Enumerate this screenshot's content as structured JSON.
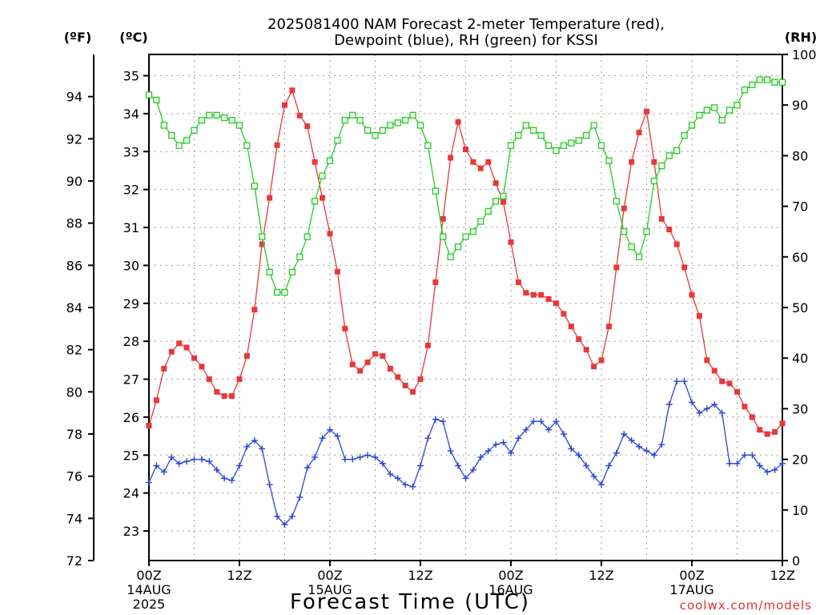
{
  "chart_data": {
    "type": "line",
    "title": "2025081400 NAM Forecast 2-meter Temperature (red),",
    "subtitle": "Dewpoint (blue), RH (green) for KSSI",
    "xlabel": "Forecast Time (UTC)",
    "credit": "coolwx.com/models",
    "units": {
      "left_f": "(ºF)",
      "left_c": "(ºC)",
      "right": "(RH)"
    },
    "x_range_hours": [
      0,
      84
    ],
    "x_ticks": [
      {
        "hour": 0,
        "label": "00Z",
        "sub1": "14AUG",
        "sub2": "2025"
      },
      {
        "hour": 12,
        "label": "12Z",
        "sub1": "",
        "sub2": ""
      },
      {
        "hour": 24,
        "label": "00Z",
        "sub1": "15AUG",
        "sub2": ""
      },
      {
        "hour": 36,
        "label": "12Z",
        "sub1": "",
        "sub2": ""
      },
      {
        "hour": 48,
        "label": "00Z",
        "sub1": "16AUG",
        "sub2": ""
      },
      {
        "hour": 60,
        "label": "12Z",
        "sub1": "",
        "sub2": ""
      },
      {
        "hour": 72,
        "label": "00Z",
        "sub1": "17AUG",
        "sub2": ""
      },
      {
        "hour": 84,
        "label": "12Z",
        "sub1": "",
        "sub2": ""
      }
    ],
    "f_axis": {
      "range": [
        72,
        96
      ],
      "ticks": [
        72,
        74,
        76,
        78,
        80,
        82,
        84,
        86,
        88,
        90,
        92,
        94
      ]
    },
    "c_axis": {
      "range": [
        22.22,
        35.56
      ],
      "ticks": [
        23,
        24,
        25,
        26,
        27,
        28,
        29,
        30,
        31,
        32,
        33,
        34,
        35
      ]
    },
    "rh_axis": {
      "range": [
        0,
        100
      ],
      "ticks": [
        0,
        10,
        20,
        30,
        40,
        50,
        60,
        70,
        80,
        90,
        100
      ]
    },
    "grid": true,
    "x": [
      0,
      1,
      2,
      3,
      4,
      5,
      6,
      7,
      8,
      9,
      10,
      11,
      12,
      13,
      14,
      15,
      16,
      17,
      18,
      19,
      20,
      21,
      22,
      23,
      24,
      25,
      26,
      27,
      28,
      29,
      30,
      31,
      32,
      33,
      34,
      35,
      36,
      37,
      38,
      39,
      40,
      41,
      42,
      43,
      44,
      45,
      46,
      47,
      48,
      49,
      50,
      51,
      52,
      53,
      54,
      55,
      56,
      57,
      58,
      59,
      60,
      61,
      62,
      63,
      64,
      65,
      66,
      67,
      68,
      69,
      70,
      71,
      72,
      73,
      74,
      75,
      76,
      77,
      78,
      79,
      80,
      81,
      82,
      83,
      84
    ],
    "series": [
      {
        "name": "Temperature",
        "unit": "F",
        "color": "#e8383a",
        "marker": "filled-square",
        "values": [
          78.4,
          79.6,
          81.1,
          81.9,
          82.3,
          82.1,
          81.6,
          81.2,
          80.6,
          80.0,
          79.8,
          79.8,
          80.6,
          81.7,
          83.9,
          87.0,
          89.2,
          91.7,
          93.6,
          94.3,
          93.1,
          92.6,
          90.9,
          89.2,
          87.5,
          85.7,
          83.0,
          81.3,
          81.0,
          81.4,
          81.8,
          81.7,
          81.1,
          80.7,
          80.3,
          80.0,
          80.6,
          82.2,
          85.2,
          88.2,
          91.1,
          92.8,
          91.5,
          90.9,
          90.6,
          90.9,
          89.9,
          89.0,
          87.1,
          85.2,
          84.7,
          84.6,
          84.6,
          84.4,
          84.2,
          83.7,
          83.1,
          82.5,
          82.0,
          81.2,
          81.5,
          83.1,
          85.9,
          88.7,
          90.9,
          92.3,
          93.3,
          90.9,
          88.2,
          87.7,
          87.0,
          85.9,
          84.6,
          83.6,
          81.5,
          81.0,
          80.5,
          80.4,
          80.0,
          79.3,
          78.8,
          78.2,
          78.0,
          78.1,
          78.5
        ]
      },
      {
        "name": "Dewpoint",
        "unit": "F",
        "color": "#2a45d8",
        "marker": "plus",
        "values": [
          75.7,
          76.5,
          76.2,
          76.9,
          76.6,
          76.7,
          76.8,
          76.8,
          76.7,
          76.3,
          75.9,
          75.8,
          76.5,
          77.4,
          77.7,
          77.3,
          75.6,
          74.1,
          73.7,
          74.1,
          75.0,
          76.4,
          76.9,
          77.8,
          78.2,
          77.9,
          76.8,
          76.8,
          76.9,
          77.0,
          76.9,
          76.6,
          76.1,
          75.9,
          75.6,
          75.5,
          76.5,
          77.8,
          78.7,
          78.6,
          77.2,
          76.5,
          75.9,
          76.3,
          76.9,
          77.2,
          77.5,
          77.6,
          77.1,
          77.8,
          78.2,
          78.6,
          78.6,
          78.2,
          78.6,
          78.0,
          77.3,
          77.0,
          76.5,
          76.0,
          75.6,
          76.5,
          77.1,
          78.0,
          77.7,
          77.4,
          77.2,
          77.0,
          77.5,
          79.4,
          80.5,
          80.5,
          79.5,
          79.0,
          79.2,
          79.4,
          79.0,
          76.6,
          76.6,
          77.0,
          77.0,
          76.5,
          76.2,
          76.3,
          76.6
        ]
      },
      {
        "name": "RH",
        "unit": "%",
        "color": "#22cc22",
        "marker": "open-square",
        "values": [
          92,
          91,
          86,
          84,
          82,
          83,
          85,
          87,
          88,
          88,
          87.5,
          87,
          86,
          82,
          74,
          64,
          57,
          53,
          53,
          57,
          60,
          64,
          71,
          76,
          79,
          83,
          87,
          88,
          87,
          85,
          84,
          85,
          86,
          86.5,
          87,
          88,
          86,
          82,
          73,
          64,
          60,
          62,
          64,
          65,
          67,
          69,
          71,
          72,
          82,
          84,
          86,
          85,
          84,
          82,
          81,
          82,
          82.5,
          83,
          84,
          86,
          82,
          79,
          71,
          65,
          62,
          60,
          65,
          75,
          78,
          80,
          81,
          84,
          86,
          88,
          89,
          89.5,
          87,
          89,
          90,
          93,
          94,
          95,
          95,
          94.5,
          94.5
        ]
      }
    ]
  }
}
